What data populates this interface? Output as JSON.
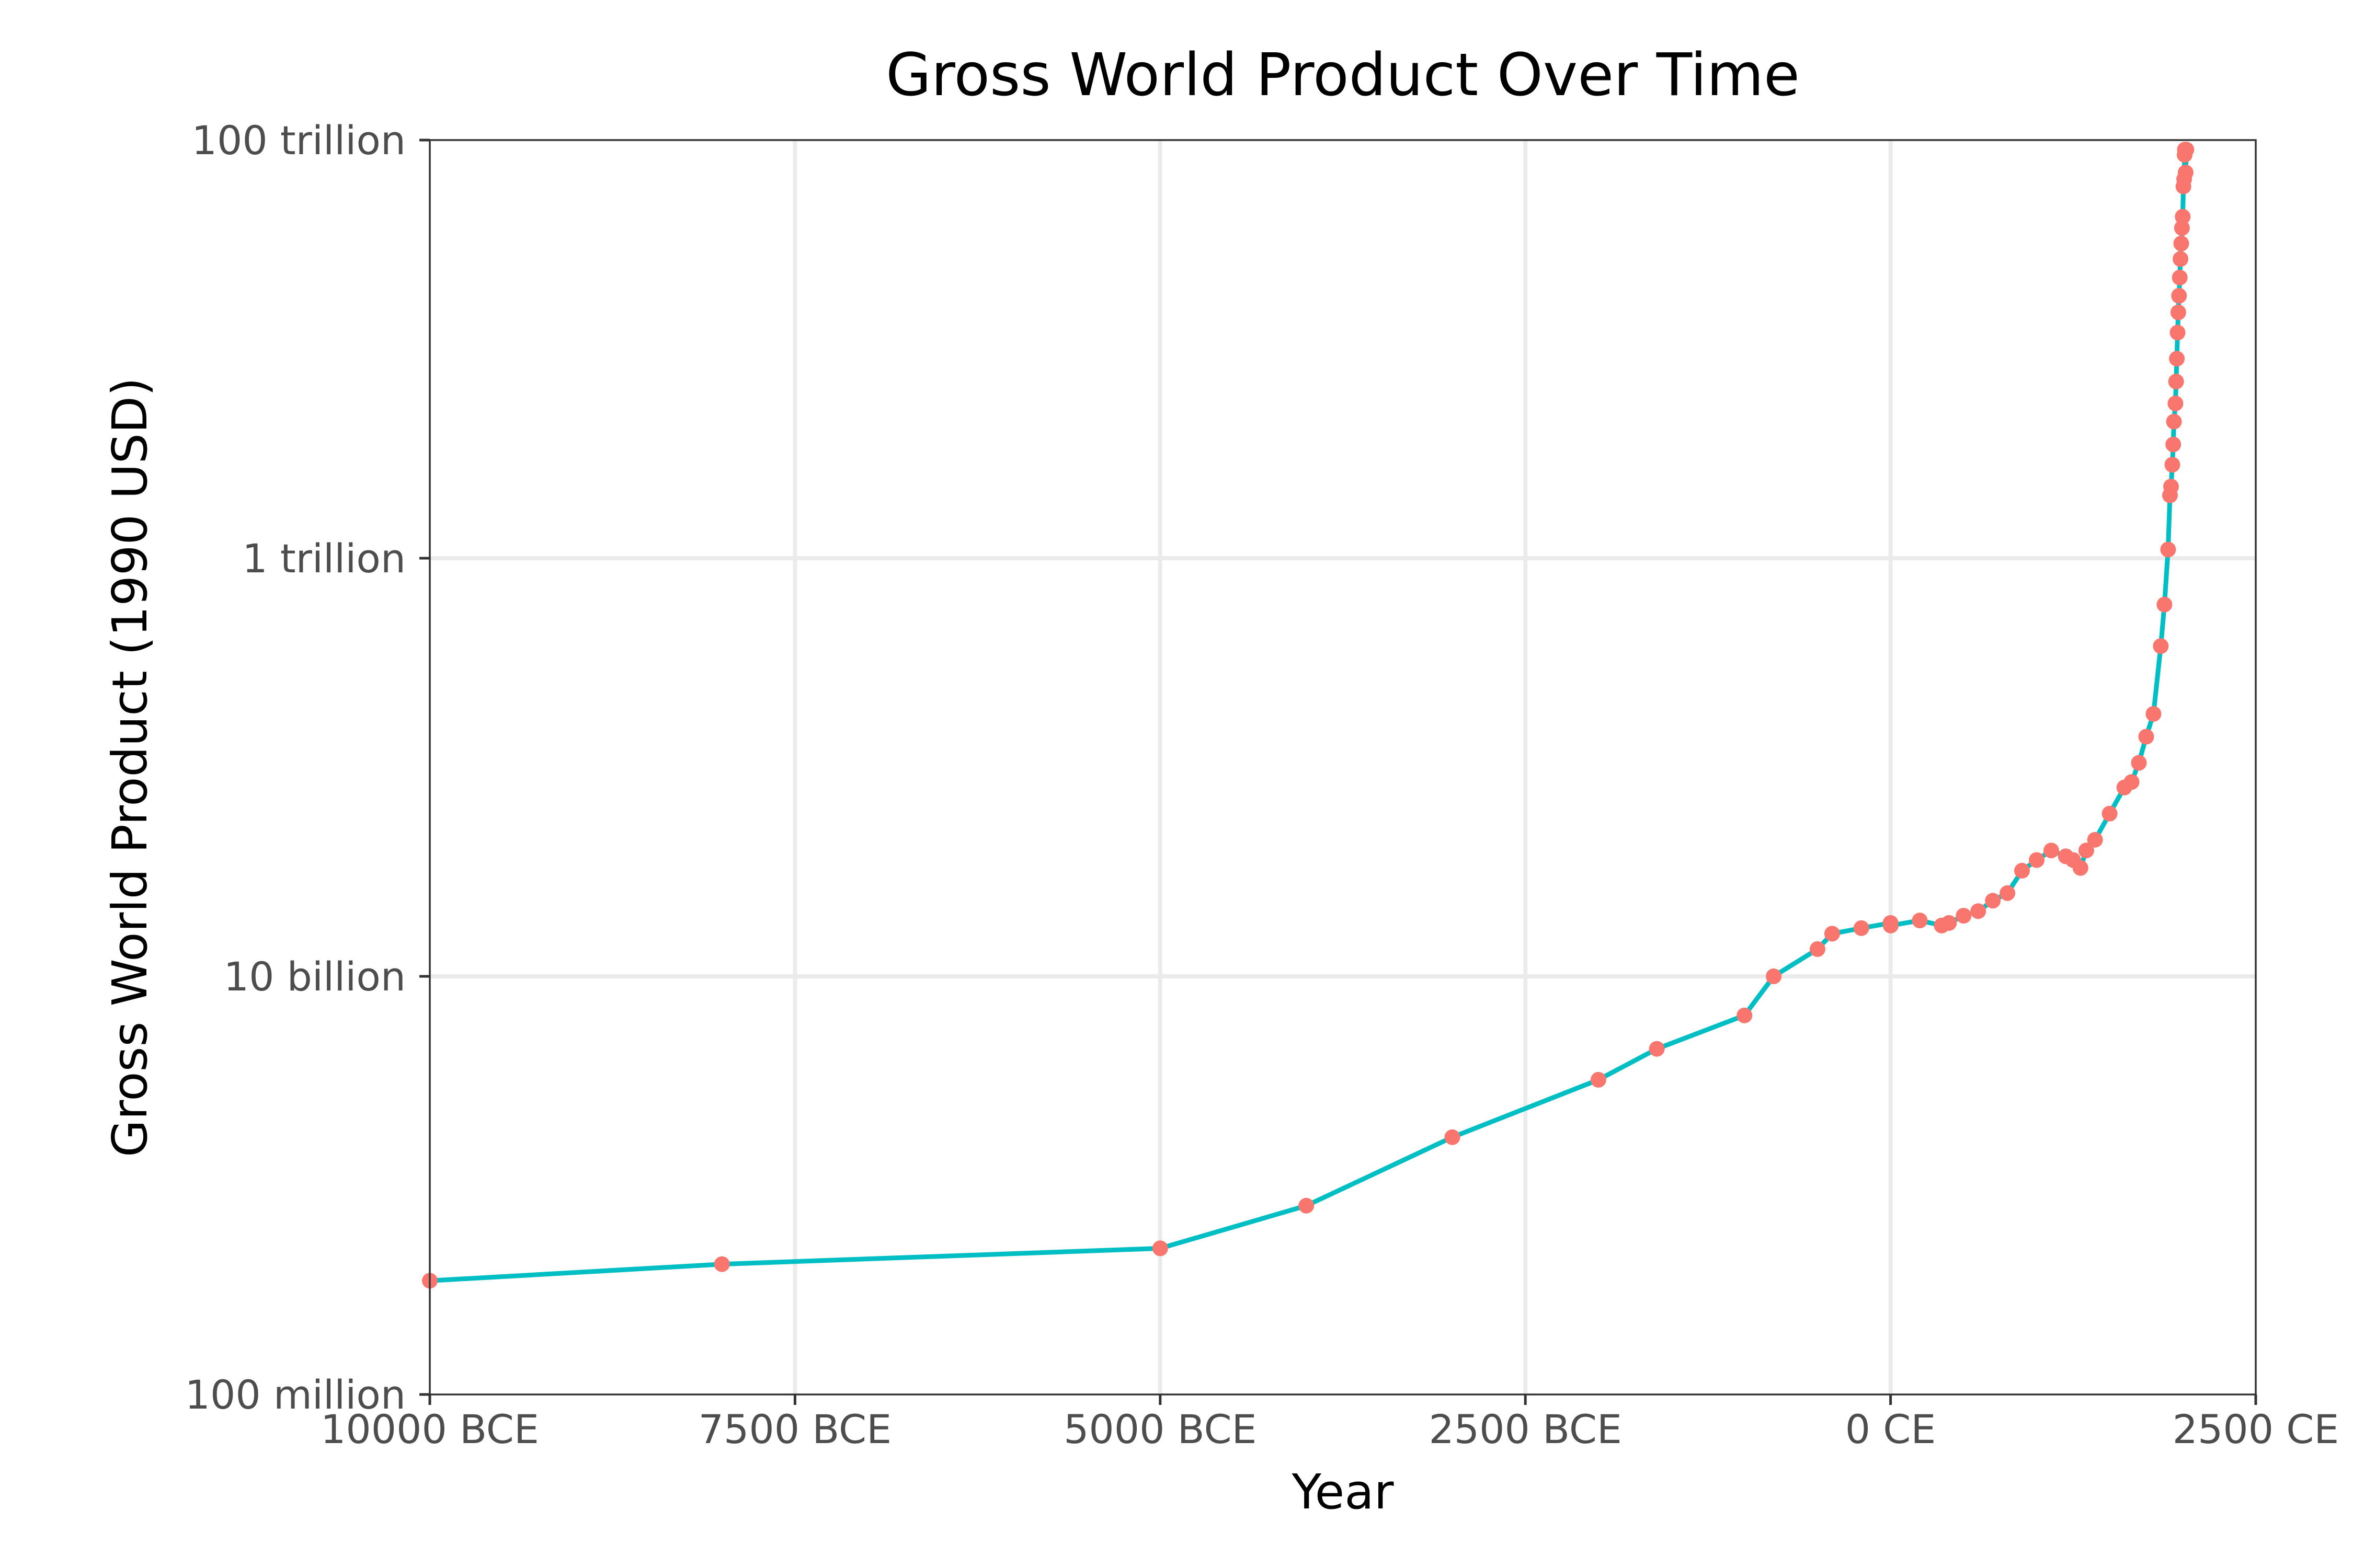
{
  "chart_data": {
    "type": "line",
    "title": "Gross World Product Over Time",
    "xlabel": "Year",
    "ylabel": "Gross World Product (1990 USD)",
    "x_scale": "linear",
    "y_scale": "log10",
    "xlim": [
      -10000,
      2500
    ],
    "ylim": [
      100000000,
      100000000000000
    ],
    "x_ticks": [
      {
        "value": -10000,
        "label": "10000 BCE"
      },
      {
        "value": -7500,
        "label": "7500 BCE"
      },
      {
        "value": -5000,
        "label": "5000 BCE"
      },
      {
        "value": -2500,
        "label": "2500 BCE"
      },
      {
        "value": 0,
        "label": "0 CE"
      },
      {
        "value": 2500,
        "label": "2500 CE"
      }
    ],
    "y_ticks": [
      {
        "value": 100000000,
        "label": "100 million"
      },
      {
        "value": 10000000000,
        "label": "10 billion"
      },
      {
        "value": 1000000000000,
        "label": "1 trillion"
      },
      {
        "value": 100000000000000,
        "label": "100 trillion"
      }
    ],
    "grid": true,
    "line_color": "#00bfc4",
    "point_color": "#f8766d",
    "series": [
      {
        "x": [
          -10000,
          -8000,
          -5000,
          -4000,
          -3000,
          -2000,
          -1600,
          -1000,
          -800,
          -500,
          -400,
          -200,
          0,
          1,
          200,
          350,
          400,
          500,
          600,
          700,
          800,
          900,
          1000,
          1100,
          1200,
          1250,
          1300,
          1340,
          1400,
          1500,
          1600,
          1650,
          1700,
          1750,
          1800,
          1850,
          1875,
          1900,
          1913,
          1920,
          1929,
          1935,
          1940,
          1950,
          1955,
          1960,
          1965,
          1970,
          1975,
          1980,
          1985,
          1990,
          1995,
          2000,
          2005,
          2010,
          2013,
          2015,
          2020,
          2025
        ],
        "y": [
          350000000,
          420000000,
          500000000,
          800000000,
          1700000000,
          3200000000,
          4500000000,
          6500000000,
          10000000000,
          13500000000,
          16000000000,
          17000000000,
          18000000000,
          17500000000,
          18500000000,
          17500000000,
          18000000000,
          19500000000,
          20500000000,
          23000000000,
          25000000000,
          32000000000,
          36000000000,
          40000000000,
          37500000000,
          36000000000,
          33000000000,
          40000000000,
          45000000000,
          60000000000,
          80000000000,
          85000000000,
          105000000000,
          140000000000,
          180000000000,
          380000000000,
          600000000000,
          1100000000000,
          2000000000000,
          2200000000000,
          2800000000000,
          3500000000000,
          4500000000000,
          5500000000000,
          7000000000000,
          9000000000000,
          12000000000000,
          15000000000000,
          18000000000000,
          22000000000000,
          27000000000000,
          32000000000000,
          38000000000000,
          43000000000000,
          60000000000000,
          65000000000000,
          85000000000000,
          90000000000000,
          70000000000000,
          90000000000000
        ]
      }
    ]
  }
}
